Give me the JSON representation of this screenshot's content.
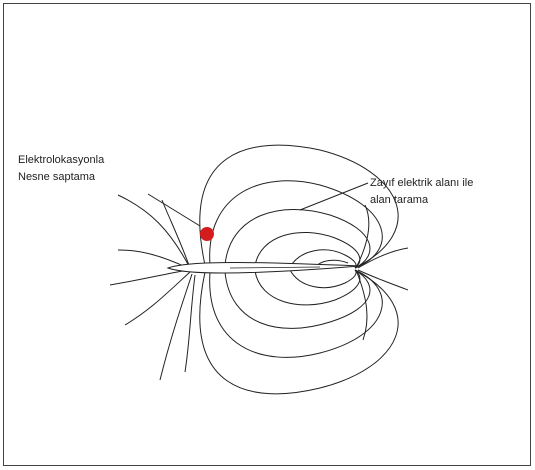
{
  "labels": [
    {
      "lines": [
        "Elektrolokasyonla",
        "Nesne saptama"
      ]
    },
    {
      "lines": [
        "Zayıf elektrik alanı ile",
        "alan tarama"
      ]
    }
  ]
}
